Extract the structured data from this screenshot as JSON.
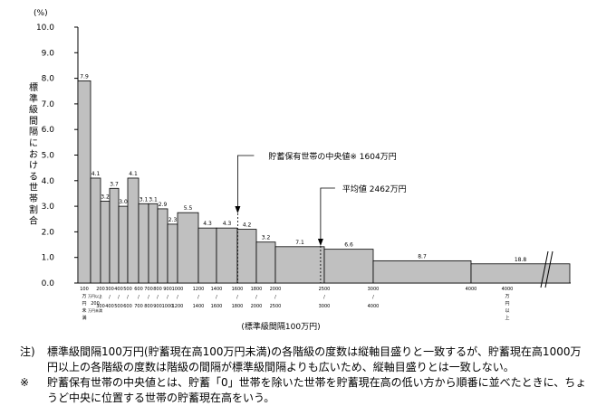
{
  "chart_data": {
    "type": "bar",
    "unit_label": "(%)",
    "ylabel": "標準級間隔における世帯割合",
    "xlabel": "(標準級間隔100万円)",
    "ylim": [
      0,
      10
    ],
    "y_ticks": [
      "0.0",
      "1.0",
      "2.0",
      "3.0",
      "4.0",
      "5.0",
      "6.0",
      "7.0",
      "8.0",
      "9.0",
      "10.0"
    ],
    "x_ticks": [
      "100",
      "200",
      "300",
      "400",
      "500",
      "600",
      "700",
      "800",
      "900",
      "1000",
      "1200",
      "1400",
      "1600",
      "1800",
      "2000",
      "2500",
      "3000",
      "4000"
    ],
    "bars": [
      {
        "from": 0,
        "to": 100,
        "value": 7.9,
        "label": "7.9"
      },
      {
        "from": 100,
        "to": 200,
        "value": 4.1,
        "label": "4.1"
      },
      {
        "from": 200,
        "to": 300,
        "value": 3.2,
        "label": "3.2"
      },
      {
        "from": 300,
        "to": 400,
        "value": 3.7,
        "label": "3.7"
      },
      {
        "from": 400,
        "to": 500,
        "value": 3.0,
        "label": "3.0"
      },
      {
        "from": 500,
        "to": 600,
        "value": 4.1,
        "label": "4.1"
      },
      {
        "from": 600,
        "to": 700,
        "value": 3.1,
        "label": "3.1"
      },
      {
        "from": 700,
        "to": 800,
        "value": 3.1,
        "label": "3.1"
      },
      {
        "from": 800,
        "to": 900,
        "value": 2.9,
        "label": "2.9"
      },
      {
        "from": 900,
        "to": 1000,
        "value": 2.3,
        "label": "2.3"
      },
      {
        "from": 1000,
        "to": 1200,
        "value": 2.75,
        "label": "5.5"
      },
      {
        "from": 1200,
        "to": 1400,
        "value": 2.15,
        "label": "4.3"
      },
      {
        "from": 1400,
        "to": 1600,
        "value": 2.15,
        "label": "4.3"
      },
      {
        "from": 1600,
        "to": 1800,
        "value": 2.1,
        "label": "4.2"
      },
      {
        "from": 1800,
        "to": 2000,
        "value": 1.6,
        "label": "3.2"
      },
      {
        "from": 2000,
        "to": 2500,
        "value": 1.42,
        "label": "7.1"
      },
      {
        "from": 2500,
        "to": 3000,
        "value": 1.32,
        "label": "6.6"
      },
      {
        "from": 3000,
        "to": 4000,
        "value": 0.87,
        "label": "8.7"
      },
      {
        "from": 4000,
        "to": null,
        "value": 0.75,
        "label": "18.8"
      }
    ],
    "first_category_label": [
      "100",
      "万",
      "円",
      "未",
      "満"
    ],
    "second_category_label": [
      "万円以上",
      "200",
      "万円未満"
    ],
    "last_category_label": [
      "4000",
      "万",
      "円",
      "以",
      "上"
    ],
    "annotations": [
      {
        "text": "貯蓄保有世帯の中央値※ 1604万円",
        "x": 1604
      },
      {
        "text": "平均値 2462万円",
        "x": 2462
      }
    ]
  },
  "notes": [
    {
      "mark": "注)",
      "lines": [
        "標準級間隔100万円(貯蓄現在高100万円未満)の各階級の度数は縦軸目盛りと一致するが、貯蓄現在高1000万",
        "円以上の各階級の度数は階級の間隔が標準級間隔よりも広いため、縦軸目盛りとは一致しない。"
      ]
    },
    {
      "mark": "※",
      "lines": [
        "貯蓄保有世帯の中央値とは、貯蓄「0」世帯を除いた世帯を貯蓄現在高の低い方から順番に並べたときに、ちょ",
        "うど中央に位置する世帯の貯蓄現在高をいう。"
      ]
    }
  ]
}
